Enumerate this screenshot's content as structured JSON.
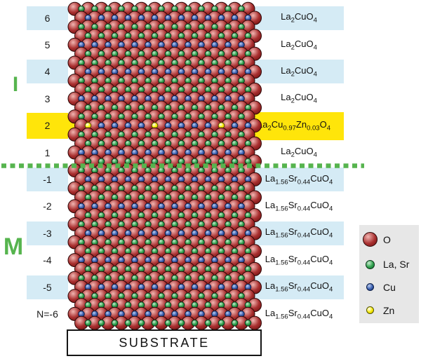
{
  "blocks": {
    "insulating_label": "I",
    "metallic_label": "M"
  },
  "layers": [
    {
      "num": "6",
      "band": "blue",
      "formula": "La2CuO4"
    },
    {
      "num": "5",
      "band": "white",
      "formula": "La2CuO4"
    },
    {
      "num": "4",
      "band": "blue",
      "formula": "La2CuO4"
    },
    {
      "num": "3",
      "band": "white",
      "formula": "La2CuO4"
    },
    {
      "num": "2",
      "band": "yellow",
      "formula": "La2Cu0.97Zn0.03O4"
    },
    {
      "num": "1",
      "band": "white",
      "formula": "La2CuO4"
    },
    {
      "num": "-1",
      "band": "blue",
      "formula": "La1.56Sr0.44CuO4"
    },
    {
      "num": "-2",
      "band": "white",
      "formula": "La1.56Sr0.44CuO4"
    },
    {
      "num": "-3",
      "band": "blue",
      "formula": "La1.56Sr0.44CuO4"
    },
    {
      "num": "-4",
      "band": "white",
      "formula": "La1.56Sr0.44CuO4"
    },
    {
      "num": "-5",
      "band": "blue",
      "formula": "La1.56Sr0.44CuO4"
    },
    {
      "num": "N=-6",
      "band": "white",
      "formula": "La1.56Sr0.44CuO4"
    }
  ],
  "substrate_label": "SUBSTRATE",
  "legend": {
    "items": [
      {
        "atom": "O",
        "label": "O"
      },
      {
        "atom": "LaSr",
        "label": "La, Sr"
      },
      {
        "atom": "Cu",
        "label": "Cu"
      },
      {
        "atom": "Zn",
        "label": "Zn"
      }
    ]
  },
  "lattice": {
    "zn_positions": [
      0,
      5,
      10
    ]
  },
  "atom_colors": {
    "O": {
      "hi": "#f2b6b2",
      "mid": "#a93030",
      "lo": "#6e1010",
      "line": "#2e0707"
    },
    "LaSr": {
      "hi": "#c8ecd0",
      "mid": "#2fa04c",
      "lo": "#136b31",
      "line": "#0a3418"
    },
    "Cu": {
      "hi": "#becff0",
      "mid": "#3a5fb0",
      "lo": "#17326f",
      "line": "#0a1c45"
    },
    "Zn": {
      "hi": "#ffffff",
      "mid": "#f6ea00",
      "lo": "#c9b400",
      "line": "#555500"
    }
  },
  "colors": {
    "background": "#ffffff",
    "band_blue": "#d5ebf5",
    "band_yellow": "#ffe50a",
    "accent_green": "#56b44e",
    "legend_bg": "#e7e7e7",
    "text": "#111111"
  }
}
